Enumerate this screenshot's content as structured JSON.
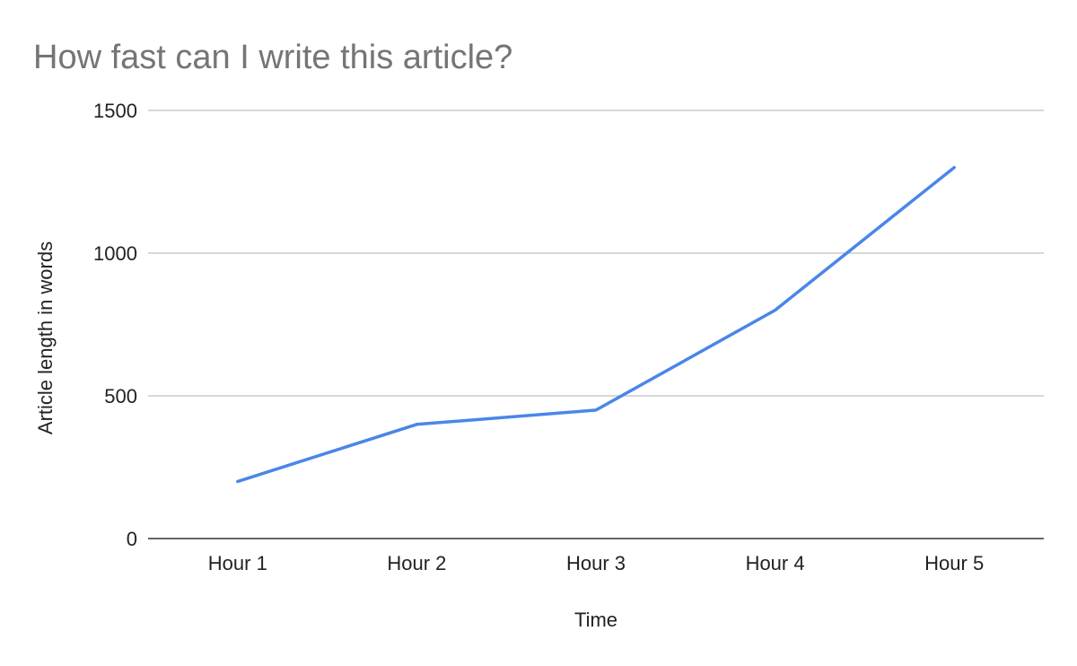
{
  "chart_data": {
    "type": "line",
    "title": "How fast can I write this article?",
    "xlabel": "Time",
    "ylabel": "Article length in words",
    "categories": [
      "Hour 1",
      "Hour 2",
      "Hour 3",
      "Hour 4",
      "Hour 5"
    ],
    "series": [
      {
        "values": [
          200,
          400,
          450,
          800,
          1300
        ],
        "color": "#4a86e8"
      }
    ],
    "ylim": [
      0,
      1500
    ],
    "yticks": [
      0,
      500,
      1000,
      1500
    ],
    "grid": true,
    "legend": "none"
  }
}
